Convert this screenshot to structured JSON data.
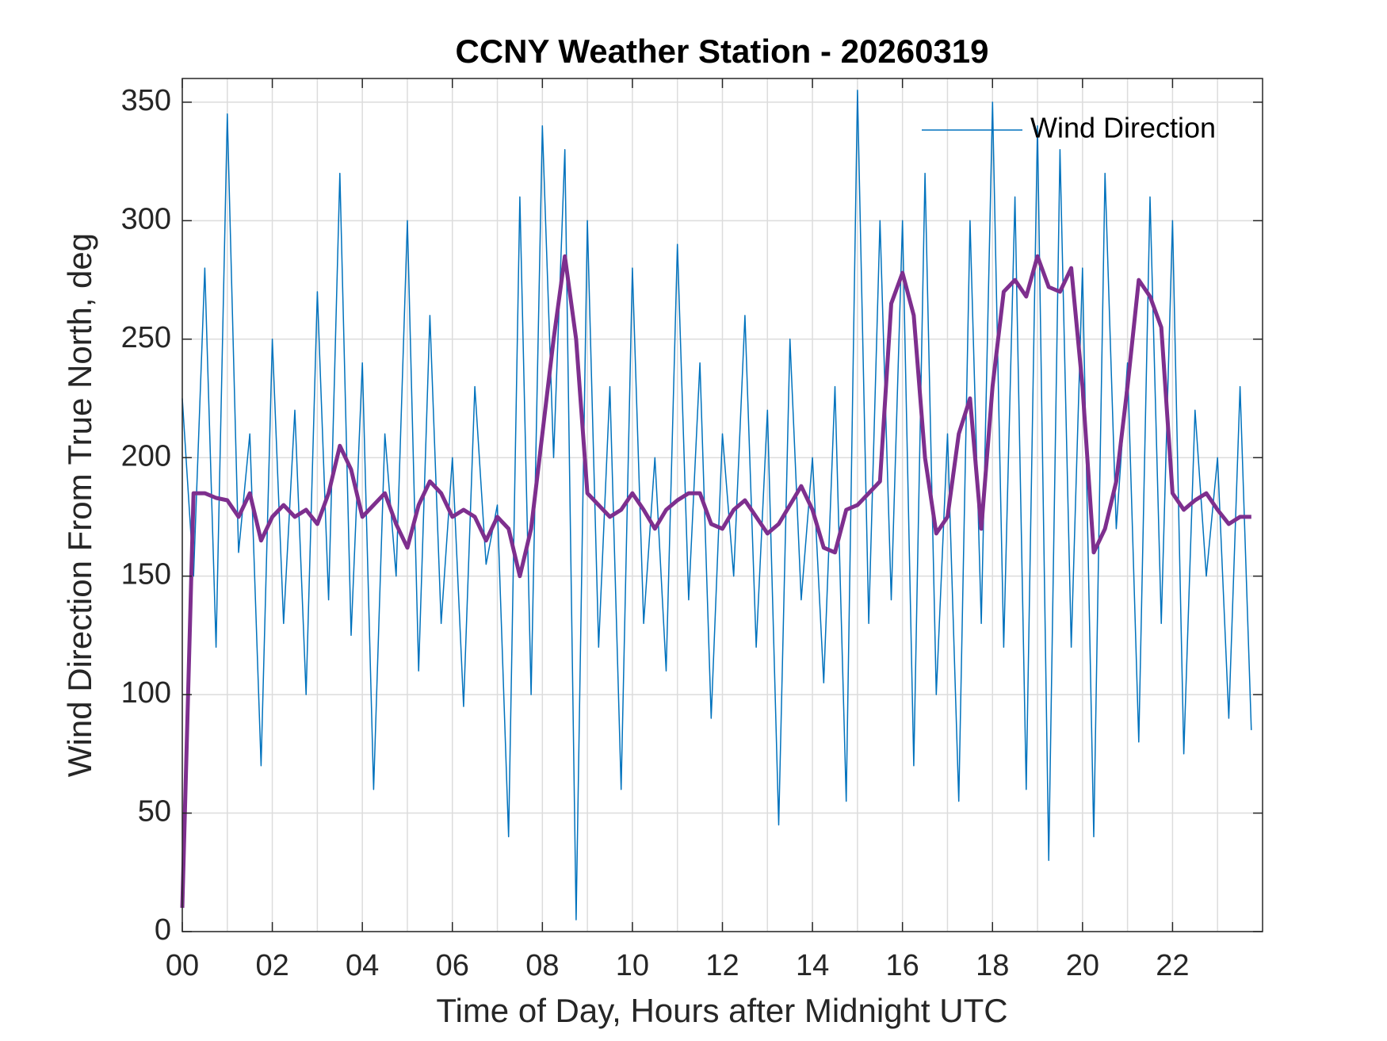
{
  "chart_data": {
    "type": "line",
    "title": "CCNY Weather Station - 20260319",
    "x_label": "Time of Day, Hours after Midnight UTC",
    "y_label": "Wind Direction From True North, deg",
    "x": [
      0,
      0.25,
      0.5,
      0.75,
      1,
      1.25,
      1.5,
      1.75,
      2,
      2.25,
      2.5,
      2.75,
      3,
      3.25,
      3.5,
      3.75,
      4,
      4.25,
      4.5,
      4.75,
      5,
      5.25,
      5.5,
      5.75,
      6,
      6.25,
      6.5,
      6.75,
      7,
      7.25,
      7.5,
      7.75,
      8,
      8.25,
      8.5,
      8.75,
      9,
      9.25,
      9.5,
      9.75,
      10,
      10.25,
      10.5,
      10.75,
      11,
      11.25,
      11.5,
      11.75,
      12,
      12.25,
      12.5,
      12.75,
      13,
      13.25,
      13.5,
      13.75,
      14,
      14.25,
      14.5,
      14.75,
      15,
      15.25,
      15.5,
      15.75,
      16,
      16.25,
      16.5,
      16.75,
      17,
      17.25,
      17.5,
      17.75,
      18,
      18.25,
      18.5,
      18.75,
      19,
      19.25,
      19.5,
      19.75,
      20,
      20.25,
      20.5,
      20.75,
      21,
      21.25,
      21.5,
      21.75,
      22,
      22.25,
      22.5,
      22.75,
      23,
      23.25,
      23.5,
      23.75
    ],
    "series": [
      {
        "name": "Wind Direction",
        "color": "#0072bd",
        "width": 1.5,
        "values": [
          225,
          150,
          280,
          120,
          345,
          160,
          210,
          70,
          250,
          130,
          220,
          100,
          270,
          140,
          320,
          125,
          240,
          60,
          210,
          150,
          300,
          110,
          260,
          130,
          200,
          95,
          230,
          155,
          180,
          40,
          310,
          100,
          340,
          200,
          330,
          5,
          300,
          120,
          230,
          60,
          280,
          130,
          200,
          110,
          290,
          140,
          240,
          90,
          210,
          150,
          260,
          120,
          220,
          45,
          250,
          140,
          200,
          105,
          230,
          55,
          355,
          130,
          300,
          140,
          300,
          70,
          320,
          100,
          210,
          55,
          300,
          130,
          350,
          120,
          310,
          60,
          340,
          30,
          330,
          120,
          280,
          40,
          320,
          170,
          240,
          80,
          310,
          130,
          300,
          75,
          220,
          150,
          200,
          90,
          230,
          85
        ]
      },
      {
        "color": "#7e2f8e",
        "width": 5,
        "values": [
          10,
          185,
          185,
          183,
          182,
          175,
          185,
          165,
          175,
          180,
          175,
          178,
          172,
          185,
          205,
          195,
          175,
          180,
          185,
          172,
          162,
          180,
          190,
          185,
          175,
          178,
          175,
          165,
          175,
          170,
          150,
          170,
          210,
          250,
          285,
          250,
          185,
          180,
          175,
          178,
          185,
          178,
          170,
          178,
          182,
          185,
          185,
          172,
          170,
          178,
          182,
          175,
          168,
          172,
          180,
          188,
          178,
          162,
          160,
          178,
          180,
          185,
          190,
          265,
          278,
          260,
          200,
          168,
          175,
          210,
          225,
          170,
          230,
          270,
          275,
          268,
          285,
          272,
          270,
          280,
          230,
          160,
          170,
          190,
          230,
          275,
          268,
          255,
          185,
          178,
          182,
          185,
          178,
          172,
          175,
          175
        ]
      }
    ],
    "xlim": [
      0,
      24
    ],
    "ylim": [
      0,
      360
    ],
    "xticks": [
      {
        "value": 0,
        "label": "00"
      },
      {
        "value": 2,
        "label": "02"
      },
      {
        "value": 4,
        "label": "04"
      },
      {
        "value": 6,
        "label": "06"
      },
      {
        "value": 8,
        "label": "08"
      },
      {
        "value": 10,
        "label": "10"
      },
      {
        "value": 12,
        "label": "12"
      },
      {
        "value": 14,
        "label": "14"
      },
      {
        "value": 16,
        "label": "16"
      },
      {
        "value": 18,
        "label": "18"
      },
      {
        "value": 20,
        "label": "20"
      },
      {
        "value": 22,
        "label": "22"
      }
    ],
    "xminorticks": [
      1,
      3,
      5,
      7,
      9,
      11,
      13,
      15,
      17,
      19,
      21,
      23
    ],
    "yticks": [
      0,
      50,
      100,
      150,
      200,
      250,
      300,
      350
    ],
    "grid": true,
    "legend": "upper right"
  }
}
